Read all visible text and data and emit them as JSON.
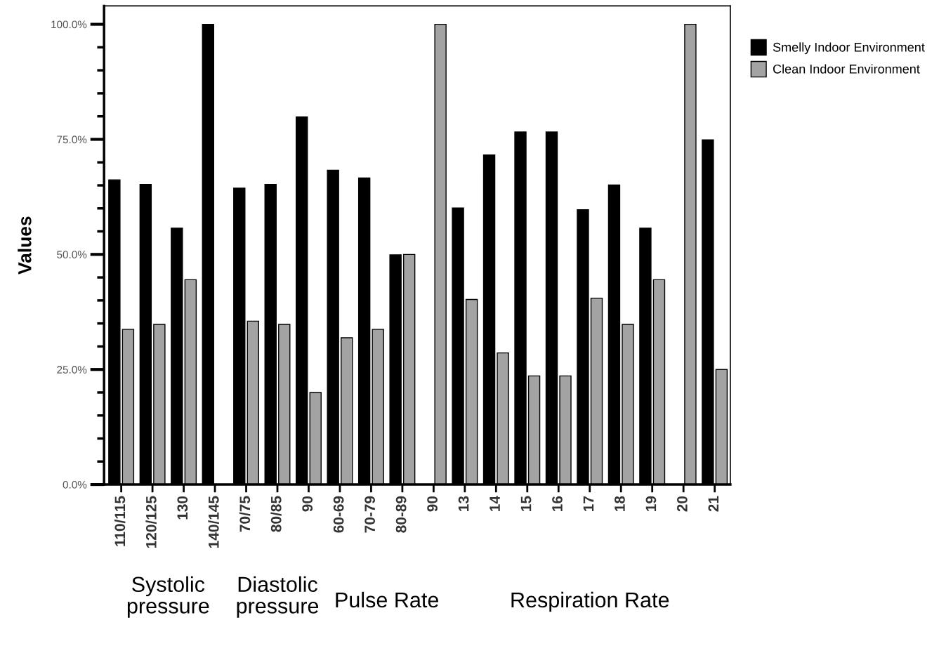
{
  "chart_data": {
    "type": "bar",
    "ylabel": "Values",
    "categories": [
      "110/115",
      "120/125",
      "130",
      "140/145",
      "70/75",
      "80/85",
      "90",
      "60-69",
      "70-79",
      "80-89",
      "90",
      "13",
      "14",
      "15",
      "16",
      "17",
      "18",
      "19",
      "20",
      "21"
    ],
    "series": [
      {
        "name": "Smelly Indoor Environment",
        "color": "#000000",
        "values": [
          66.2,
          65.2,
          55.7,
          100,
          64.4,
          65.2,
          79.9,
          68.3,
          66.6,
          49.9,
          0,
          60.1,
          71.6,
          76.6,
          76.6,
          59.7,
          65.1,
          55.7,
          0,
          74.9
        ]
      },
      {
        "name": "Clean Indoor Environment",
        "color": "#a3a3a3",
        "values": [
          33.7,
          34.8,
          44.5,
          0,
          35.5,
          34.8,
          20.0,
          31.9,
          33.7,
          50.0,
          100,
          40.2,
          28.6,
          23.6,
          23.6,
          40.5,
          34.8,
          44.5,
          100,
          25.0
        ]
      }
    ],
    "ylim": [
      0,
      104
    ],
    "yticks": [
      {
        "value": 0,
        "label": "0.0%"
      },
      {
        "value": 25,
        "label": "25.0%"
      },
      {
        "value": 50,
        "label": "50.0%"
      },
      {
        "value": 75,
        "label": "75.0%"
      },
      {
        "value": 100,
        "label": "100.0%"
      }
    ],
    "annotations": [
      "Systolic\npressure",
      "Diastolic\npressure",
      "Pulse Rate",
      "Respiration Rate"
    ],
    "grid": false,
    "legend": "top right"
  }
}
